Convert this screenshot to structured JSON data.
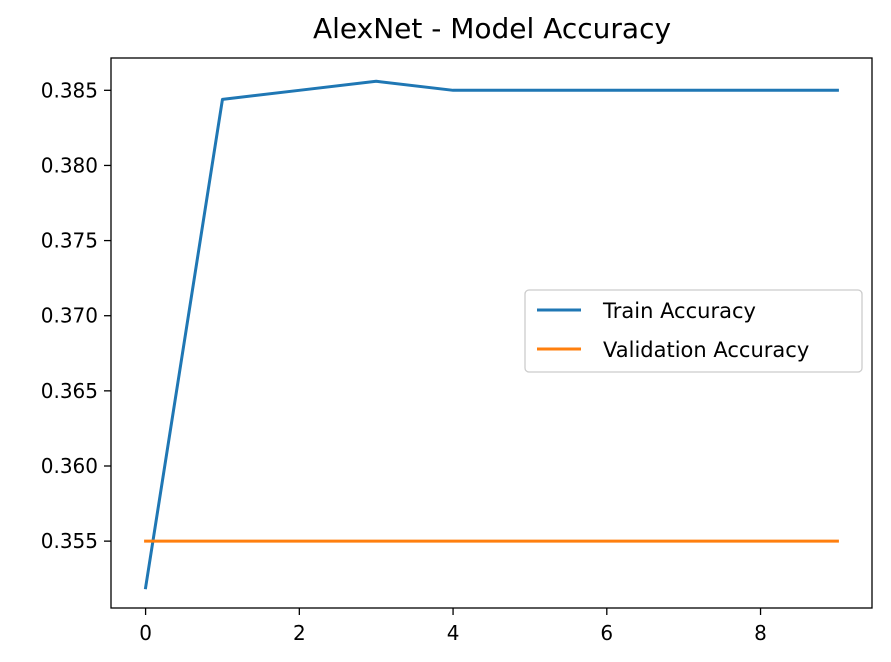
{
  "chart_data": {
    "type": "line",
    "title": "AlexNet - Model Accuracy",
    "xlabel": "",
    "ylabel": "",
    "xlim": [
      -0.45,
      9.45
    ],
    "ylim": [
      0.35055,
      0.38715
    ],
    "x_ticks": [
      0,
      2,
      4,
      6,
      8
    ],
    "x_tick_labels": [
      "0",
      "2",
      "4",
      "6",
      "8"
    ],
    "y_ticks": [
      0.355,
      0.36,
      0.365,
      0.37,
      0.375,
      0.38,
      0.385
    ],
    "y_tick_labels": [
      "0.355",
      "0.360",
      "0.365",
      "0.370",
      "0.375",
      "0.380",
      "0.385"
    ],
    "grid": false,
    "legend_position": "center-right",
    "series": [
      {
        "name": "Train Accuracy",
        "color": "#1f77b4",
        "x": [
          0,
          1,
          2,
          3,
          4,
          5,
          6,
          7,
          8,
          9
        ],
        "values": [
          0.3519,
          0.3844,
          0.385,
          0.3856,
          0.385,
          0.385,
          0.385,
          0.385,
          0.385,
          0.385
        ]
      },
      {
        "name": "Validation Accuracy",
        "color": "#ff7f0e",
        "x": [
          0,
          1,
          2,
          3,
          4,
          5,
          6,
          7,
          8,
          9
        ],
        "values": [
          0.355,
          0.355,
          0.355,
          0.355,
          0.355,
          0.355,
          0.355,
          0.355,
          0.355,
          0.355
        ]
      }
    ]
  }
}
